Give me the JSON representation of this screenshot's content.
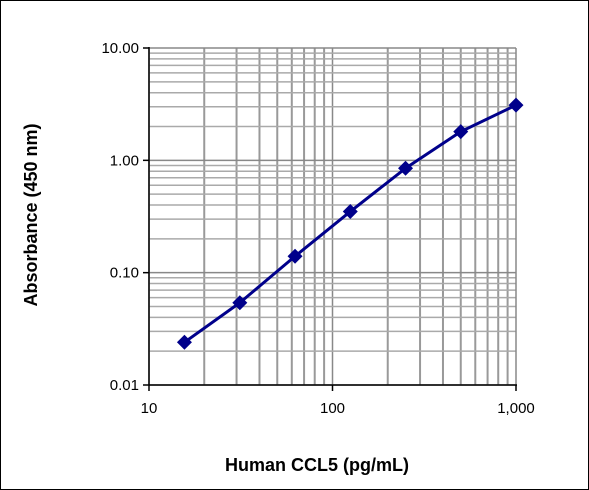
{
  "chart_data": {
    "type": "line",
    "title": "",
    "xlabel": "Human CCL5 (pg/mL)",
    "ylabel": "Absorbance (450 nm)",
    "xscale": "log",
    "yscale": "log",
    "xlim": [
      10,
      1000
    ],
    "ylim": [
      0.01,
      10
    ],
    "x_ticks": [
      10,
      100,
      1000
    ],
    "x_tick_labels": [
      "10",
      "100",
      "1,000"
    ],
    "y_ticks": [
      0.01,
      0.1,
      1,
      10
    ],
    "y_tick_labels": [
      "0.01",
      "0.10",
      "1.00",
      "10.00"
    ],
    "grid": true,
    "legend": "none",
    "line_color": "#00008b",
    "series": [
      {
        "x": [
          15.6,
          31.25,
          62.5,
          125,
          250,
          500,
          1000
        ],
        "y": [
          0.024,
          0.054,
          0.14,
          0.35,
          0.85,
          1.8,
          3.1
        ]
      }
    ]
  }
}
